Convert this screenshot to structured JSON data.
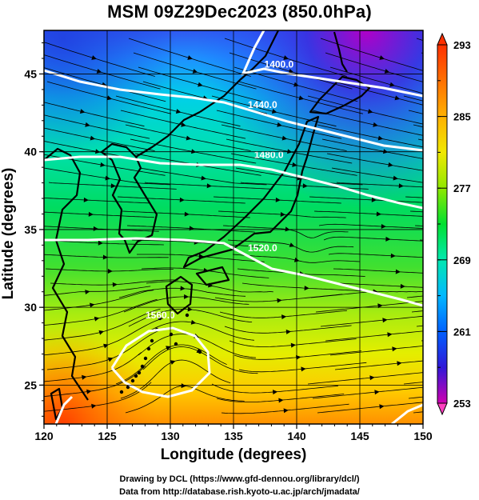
{
  "title": "MSM 09Z29Dec2023 (850.0hPa)",
  "x_axis": {
    "label": "Longitude (degrees)",
    "range": [
      120,
      150
    ],
    "ticks": [
      "120",
      "125",
      "130",
      "135",
      "140",
      "145",
      "150"
    ],
    "tick_values": [
      120,
      125,
      130,
      135,
      140,
      145,
      150
    ]
  },
  "y_axis": {
    "label": "Latitude  (degrees)",
    "range": [
      22.5,
      47.8
    ],
    "ticks": [
      "25",
      "30",
      "35",
      "40",
      "45"
    ],
    "tick_values": [
      25,
      30,
      35,
      40,
      45
    ]
  },
  "colorbar": {
    "min": 253,
    "max": 293,
    "labels": [
      "293",
      "285",
      "277",
      "269",
      "261",
      "253"
    ],
    "label_values": [
      293,
      285,
      277,
      269,
      261,
      253
    ],
    "colors": [
      "#e0009a",
      "#8a00cc",
      "#2c22e0",
      "#0070ff",
      "#00c4ff",
      "#00e8b0",
      "#00e040",
      "#70e800",
      "#d8f000",
      "#ffe000",
      "#ffaa00",
      "#ff6a00",
      "#ff3000"
    ]
  },
  "height_contours": [
    {
      "label": "1400.0",
      "label_lon": 138.6,
      "label_lat": 45.4
    },
    {
      "label": "1440.0",
      "label_lon": 137.3,
      "label_lat": 42.8
    },
    {
      "label": "1480.0",
      "label_lon": 137.8,
      "label_lat": 39.6
    },
    {
      "label": "1520.0",
      "label_lon": 137.3,
      "label_lat": 33.6
    },
    {
      "label": "1560.0",
      "label_lon": 129.2,
      "label_lat": 29.3
    }
  ],
  "credits": {
    "drawing": "Drawing by DCL (https://www.gfd-dennou.org/library/dcl/)",
    "data": "Data from http://database.rish.kyoto-u.ac.jp/arch/jmadata/"
  }
}
